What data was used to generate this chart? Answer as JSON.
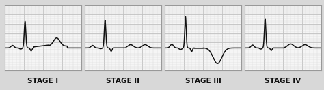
{
  "stages": [
    "STAGE I",
    "STAGE II",
    "STAGE III",
    "STAGE IV"
  ],
  "background_color": "#f5f5f5",
  "grid_minor_color": "#d8d8d8",
  "grid_major_color": "#c0c0c0",
  "ecg_color": "#111111",
  "label_color": "#111111",
  "label_fontsize": 7.5,
  "fig_bg": "#d8d8d8",
  "panel_edge_color": "#999999",
  "ecg_lw": 1.1
}
